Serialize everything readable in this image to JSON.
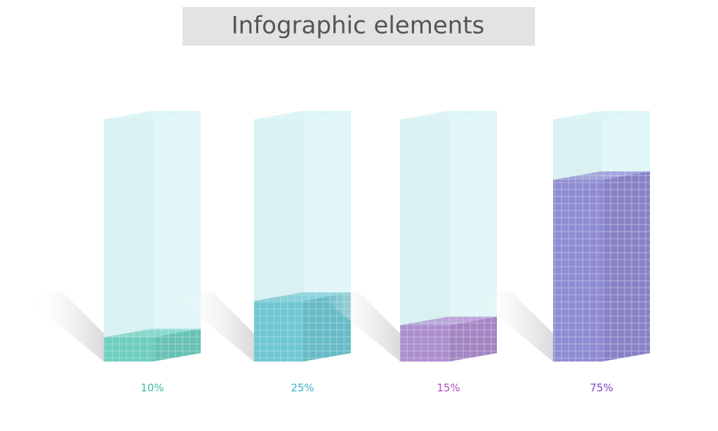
{
  "chart_data": {
    "type": "bar3d",
    "title": "Infographic elements",
    "values": [
      10,
      25,
      15,
      75
    ],
    "value_labels": [
      "10%",
      "25%",
      "15%",
      "75%"
    ],
    "colors": [
      "#3dbfa5",
      "#3cb2c8",
      "#b04cc0",
      "#7a46c9"
    ],
    "ylim": [
      0,
      100
    ]
  }
}
